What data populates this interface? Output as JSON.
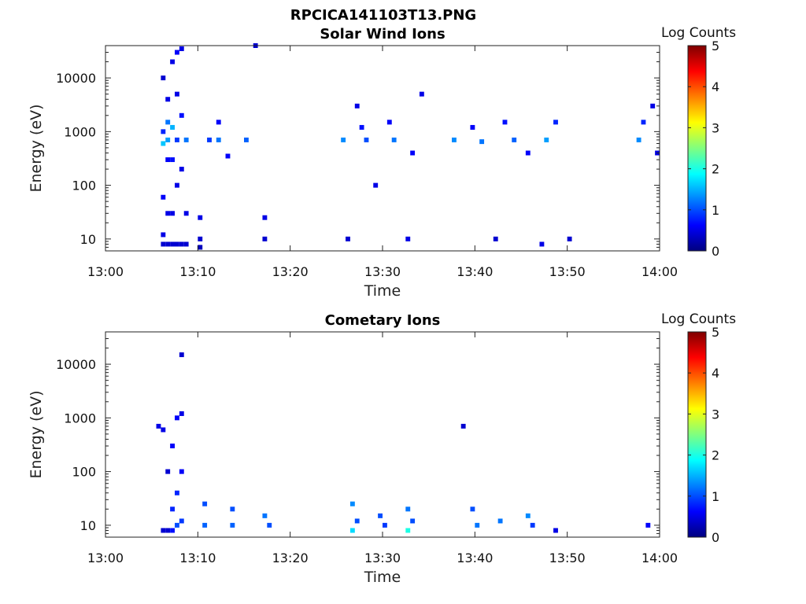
{
  "figure_title": "RPCICA141103T13.PNG",
  "chart_data": [
    {
      "type": "heatmap",
      "title": "Solar Wind Ions",
      "xlabel": "Time",
      "ylabel": "Energy (eV)",
      "x_ticks": [
        "13:00",
        "13:10",
        "13:20",
        "13:30",
        "13:40",
        "13:50",
        "14:00"
      ],
      "x_range_minutes": [
        0,
        60
      ],
      "y_scale": "log",
      "y_ticks": [
        "10",
        "100",
        "1000",
        "10000"
      ],
      "y_range": [
        6,
        40000
      ],
      "colorbar": {
        "label": "Log Counts",
        "range": [
          0,
          5
        ],
        "ticks": [
          "0",
          "1",
          "2",
          "3",
          "4",
          "5"
        ]
      },
      "cells": [
        [
          6.0,
          6.5,
          10000,
          0.4
        ],
        [
          6.0,
          6.5,
          1000,
          0.8
        ],
        [
          6.0,
          6.5,
          600,
          1.6
        ],
        [
          6.0,
          6.5,
          60,
          0.6
        ],
        [
          6.0,
          6.5,
          12,
          0.5
        ],
        [
          6.0,
          6.5,
          8,
          0.4
        ],
        [
          6.5,
          7.0,
          4000,
          0.5
        ],
        [
          6.5,
          7.0,
          1500,
          1.2
        ],
        [
          6.5,
          7.0,
          700,
          1.4
        ],
        [
          6.5,
          7.0,
          300,
          0.6
        ],
        [
          6.5,
          7.0,
          30,
          0.5
        ],
        [
          6.5,
          7.0,
          8,
          0.4
        ],
        [
          7.0,
          7.5,
          20000,
          0.5
        ],
        [
          7.0,
          7.5,
          1200,
          1.5
        ],
        [
          7.0,
          7.5,
          300,
          0.7
        ],
        [
          7.0,
          7.5,
          30,
          0.5
        ],
        [
          7.0,
          7.5,
          8,
          0.4
        ],
        [
          7.5,
          8.0,
          30000,
          0.6
        ],
        [
          7.5,
          8.0,
          5000,
          0.5
        ],
        [
          7.5,
          8.0,
          700,
          0.9
        ],
        [
          7.5,
          8.0,
          100,
          0.5
        ],
        [
          7.5,
          8.0,
          8,
          0.4
        ],
        [
          8.0,
          8.5,
          35000,
          0.5
        ],
        [
          8.0,
          8.5,
          2000,
          0.7
        ],
        [
          8.0,
          8.5,
          200,
          0.5
        ],
        [
          8.0,
          8.5,
          8,
          0.4
        ],
        [
          8.5,
          9.0,
          700,
          1.2
        ],
        [
          8.5,
          9.0,
          30,
          0.5
        ],
        [
          8.5,
          9.0,
          8,
          0.4
        ],
        [
          10.0,
          10.5,
          25,
          0.5
        ],
        [
          10.0,
          10.5,
          10,
          0.4
        ],
        [
          10.0,
          10.5,
          7,
          0.3
        ],
        [
          11.0,
          11.5,
          700,
          0.9
        ],
        [
          12.0,
          12.5,
          1500,
          0.6
        ],
        [
          12.0,
          12.5,
          700,
          1.2
        ],
        [
          13.0,
          13.5,
          350,
          0.6
        ],
        [
          15.0,
          15.5,
          700,
          1.1
        ],
        [
          16.0,
          16.5,
          40000,
          0.4
        ],
        [
          17.0,
          17.5,
          25,
          0.5
        ],
        [
          17.0,
          17.5,
          10,
          0.4
        ],
        [
          25.5,
          26.0,
          700,
          1.3
        ],
        [
          26.0,
          26.5,
          10,
          0.4
        ],
        [
          27.0,
          27.5,
          3000,
          0.5
        ],
        [
          27.5,
          28.0,
          1200,
          0.7
        ],
        [
          28.0,
          28.5,
          700,
          1.0
        ],
        [
          29.0,
          29.5,
          100,
          0.5
        ],
        [
          30.5,
          31.0,
          1500,
          0.6
        ],
        [
          31.0,
          31.5,
          700,
          1.2
        ],
        [
          32.5,
          33.0,
          10,
          0.5
        ],
        [
          33.0,
          33.5,
          400,
          0.6
        ],
        [
          34.0,
          34.5,
          5000,
          0.5
        ],
        [
          37.5,
          38.0,
          700,
          1.3
        ],
        [
          39.5,
          40.0,
          1200,
          0.6
        ],
        [
          40.5,
          41.0,
          650,
          1.2
        ],
        [
          42.0,
          42.5,
          10,
          0.4
        ],
        [
          43.0,
          43.5,
          1500,
          0.7
        ],
        [
          44.0,
          44.5,
          700,
          1.1
        ],
        [
          45.5,
          46.0,
          400,
          0.6
        ],
        [
          47.0,
          47.5,
          8,
          0.5
        ],
        [
          47.5,
          48.0,
          700,
          1.4
        ],
        [
          48.5,
          49.0,
          1500,
          0.8
        ],
        [
          50.0,
          50.5,
          10,
          0.4
        ],
        [
          57.5,
          58.0,
          700,
          1.3
        ],
        [
          58.0,
          58.5,
          1500,
          0.8
        ],
        [
          59.0,
          59.5,
          3000,
          0.5
        ],
        [
          59.5,
          60.0,
          400,
          0.5
        ]
      ]
    },
    {
      "type": "heatmap",
      "title": "Cometary Ions",
      "xlabel": "Time",
      "ylabel": "Energy (eV)",
      "x_ticks": [
        "13:00",
        "13:10",
        "13:20",
        "13:30",
        "13:40",
        "13:50",
        "14:00"
      ],
      "x_range_minutes": [
        0,
        60
      ],
      "y_scale": "log",
      "y_ticks": [
        "10",
        "100",
        "1000",
        "10000"
      ],
      "y_range": [
        6,
        40000
      ],
      "colorbar": {
        "label": "Log Counts",
        "range": [
          0,
          5
        ],
        "ticks": [
          "0",
          "1",
          "2",
          "3",
          "4",
          "5"
        ]
      },
      "cells": [
        [
          5.5,
          6.0,
          700,
          0.5
        ],
        [
          6.0,
          6.5,
          600,
          0.5
        ],
        [
          6.0,
          6.5,
          8,
          0.4
        ],
        [
          6.5,
          7.0,
          100,
          0.4
        ],
        [
          6.5,
          7.0,
          8,
          0.4
        ],
        [
          7.0,
          7.5,
          300,
          0.6
        ],
        [
          7.0,
          7.5,
          20,
          0.8
        ],
        [
          7.0,
          7.5,
          8,
          0.7
        ],
        [
          7.5,
          8.0,
          1000,
          0.6
        ],
        [
          7.5,
          8.0,
          40,
          0.8
        ],
        [
          7.5,
          8.0,
          10,
          1.0
        ],
        [
          8.0,
          8.5,
          15000,
          0.4
        ],
        [
          8.0,
          8.5,
          1200,
          0.5
        ],
        [
          8.0,
          8.5,
          100,
          0.6
        ],
        [
          8.0,
          8.5,
          12,
          0.9
        ],
        [
          10.5,
          11.0,
          25,
          1.0
        ],
        [
          10.5,
          11.0,
          10,
          1.1
        ],
        [
          13.5,
          14.0,
          20,
          1.0
        ],
        [
          13.5,
          14.0,
          10,
          1.1
        ],
        [
          17.0,
          17.5,
          15,
          1.2
        ],
        [
          17.5,
          18.0,
          10,
          1.0
        ],
        [
          26.5,
          27.0,
          25,
          1.3
        ],
        [
          26.5,
          27.0,
          8,
          1.7
        ],
        [
          27.0,
          27.5,
          12,
          1.0
        ],
        [
          29.5,
          30.0,
          15,
          1.0
        ],
        [
          30.0,
          30.5,
          10,
          0.9
        ],
        [
          32.5,
          33.0,
          20,
          1.2
        ],
        [
          32.5,
          33.0,
          8,
          2.0
        ],
        [
          33.0,
          33.5,
          12,
          1.0
        ],
        [
          38.5,
          39.0,
          700,
          0.4
        ],
        [
          39.5,
          40.0,
          20,
          1.0
        ],
        [
          40.0,
          40.5,
          10,
          1.2
        ],
        [
          42.5,
          43.0,
          12,
          1.2
        ],
        [
          45.5,
          46.0,
          15,
          1.3
        ],
        [
          46.0,
          46.5,
          10,
          0.9
        ],
        [
          48.5,
          49.0,
          8,
          0.5
        ],
        [
          58.5,
          59.0,
          10,
          0.6
        ]
      ]
    }
  ]
}
